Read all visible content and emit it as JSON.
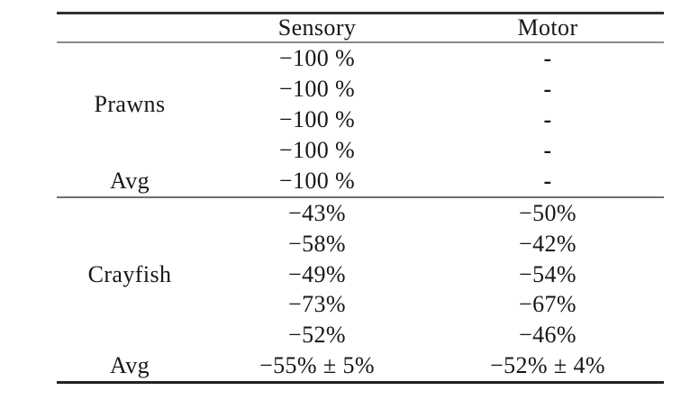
{
  "styles": {
    "background": "#ffffff",
    "text_color": "#171717",
    "rule_dark": "#333333",
    "rule_gray": "#8a8a8a"
  },
  "table": {
    "columns": [
      {
        "label": ""
      },
      {
        "label": "Sensory"
      },
      {
        "label": "Motor"
      }
    ],
    "sections": [
      {
        "label": "Prawns",
        "rows": [
          {
            "sensory": "−100 %",
            "motor": "-"
          },
          {
            "sensory": "−100 %",
            "motor": "-"
          },
          {
            "sensory": "−100 %",
            "motor": "-"
          },
          {
            "sensory": "−100 %",
            "motor": "-"
          }
        ],
        "avg": {
          "label": "Avg",
          "sensory": "−100 %",
          "motor": "-"
        }
      },
      {
        "label": "Crayfish",
        "rows": [
          {
            "sensory": "−43%",
            "motor": "−50%"
          },
          {
            "sensory": "−58%",
            "motor": "−42%"
          },
          {
            "sensory": "−49%",
            "motor": "−54%"
          },
          {
            "sensory": "−73%",
            "motor": "−67%"
          },
          {
            "sensory": "−52%",
            "motor": "−46%"
          }
        ],
        "avg": {
          "label": "Avg",
          "sensory": "−55% ± 5%",
          "motor": "−52% ± 4%"
        }
      }
    ]
  }
}
